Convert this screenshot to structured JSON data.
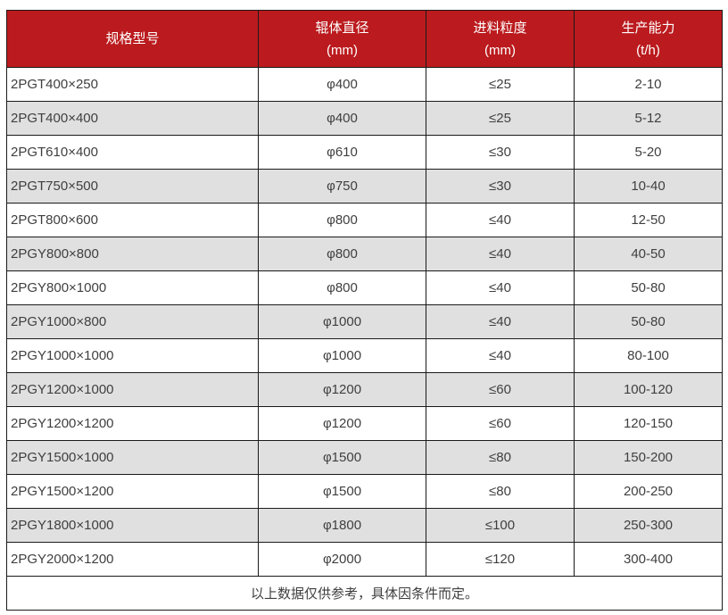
{
  "table": {
    "columns": [
      {
        "label": "规格型号",
        "sub": ""
      },
      {
        "label": "辊体直径",
        "sub": "(mm)"
      },
      {
        "label": "进料粒度",
        "sub": "(mm)"
      },
      {
        "label": "生产能力",
        "sub": "(t/h)"
      }
    ],
    "column_keys": [
      "model",
      "roller-diameter",
      "feed-size",
      "capacity"
    ],
    "rows": [
      [
        "2PGT400×250",
        "φ400",
        "≤25",
        "2-10"
      ],
      [
        "2PGT400×400",
        "φ400",
        "≤25",
        "5-12"
      ],
      [
        "2PGT610×400",
        "φ610",
        "≤30",
        "5-20"
      ],
      [
        "2PGT750×500",
        "φ750",
        "≤30",
        "10-40"
      ],
      [
        "2PGT800×600",
        "φ800",
        "≤40",
        "12-50"
      ],
      [
        "2PGY800×800",
        "φ800",
        "≤40",
        "40-50"
      ],
      [
        "2PGY800×1000",
        "φ800",
        "≤40",
        "50-80"
      ],
      [
        "2PGY1000×800",
        "φ1000",
        "≤40",
        "50-80"
      ],
      [
        "2PGY1000×1000",
        "φ1000",
        "≤40",
        "80-100"
      ],
      [
        "2PGY1200×1000",
        "φ1200",
        "≤60",
        "100-120"
      ],
      [
        "2PGY1200×1200",
        "φ1200",
        "≤60",
        "120-150"
      ],
      [
        "2PGY1500×1000",
        "φ1500",
        "≤80",
        "150-200"
      ],
      [
        "2PGY1500×1200",
        "φ1500",
        "≤80",
        "200-250"
      ],
      [
        "2PGY1800×1000",
        "φ1800",
        "≤100",
        "250-300"
      ],
      [
        "2PGY2000×1200",
        "φ2000",
        "≤120",
        "300-400"
      ]
    ],
    "footnote": "以上数据仅供参考，具体因条件而定。"
  },
  "colors": {
    "header_bg": "#bb1b1e",
    "header_text": "#ffffff",
    "row_alt_bg": "#e0e0e0",
    "row_bg": "#ffffff",
    "border": "#1a1a1a",
    "text": "#3f3f3f"
  }
}
